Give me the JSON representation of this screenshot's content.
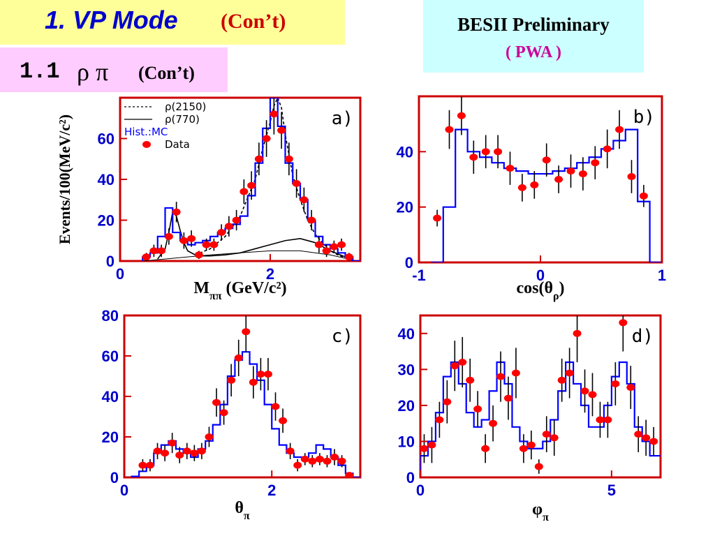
{
  "header": {
    "title_main": "1. VP Mode",
    "title_suffix": "(Con’t)",
    "subtitle_number": "1.1",
    "subtitle_greek": "ρ π",
    "subtitle_suffix": "(Con’t)",
    "badge_line1": "BESII Preliminary",
    "badge_line2": "( PWA )"
  },
  "colors": {
    "title_bg": "#ffff99",
    "title_text": "#0000cc",
    "title_suffix": "#cc0000",
    "subtitle_bg": "#ffccff",
    "badge_bg": "#ccffff",
    "badge_line2": "#cc0099",
    "axis": "#cc0000",
    "tick_label": "#0000cc",
    "mc_hist": "#0000ff",
    "data_point": "#ff0000",
    "error_bar": "#000000"
  },
  "chart_data": [
    {
      "id": "a",
      "type": "line",
      "panel_label": "a)",
      "xlabel": "M",
      "xlabel_sub": "ππ",
      "xlabel_unit": " (GeV/c²)",
      "ylabel": "Events/100(MeV/c²)",
      "xlim": [
        0,
        3.2
      ],
      "ylim": [
        0,
        80
      ],
      "xticks": [
        {
          "v": 0,
          "t": "0"
        },
        {
          "v": 2,
          "t": "2"
        }
      ],
      "yticks": [
        {
          "v": 0,
          "t": "0"
        },
        {
          "v": 20,
          "t": "20"
        },
        {
          "v": 40,
          "t": "40"
        },
        {
          "v": 60,
          "t": "60"
        }
      ],
      "legend": [
        {
          "style": "dashed",
          "label": "ρ(2150)"
        },
        {
          "style": "solid",
          "label": "ρ(770)"
        },
        {
          "style": "hist",
          "label": "Hist.:MC"
        },
        {
          "style": "dot",
          "label": "Data"
        }
      ],
      "series": [
        {
          "name": "ρ(2150)",
          "kind": "dashed",
          "x": [
            1.0,
            1.2,
            1.4,
            1.6,
            1.8,
            1.9,
            2.0,
            2.05,
            2.1,
            2.15,
            2.2,
            2.3,
            2.4,
            2.5,
            2.6,
            2.7,
            2.8,
            2.9,
            3.0,
            3.1
          ],
          "y": [
            3,
            6,
            12,
            22,
            40,
            55,
            68,
            76,
            80,
            75,
            62,
            42,
            30,
            20,
            13,
            9,
            5,
            3,
            1.5,
            0.5
          ]
        },
        {
          "name": "ρ(770)",
          "kind": "solid",
          "x": [
            0.5,
            0.6,
            0.65,
            0.7,
            0.75,
            0.8,
            0.85,
            0.9,
            1.0,
            1.1,
            1.2,
            1.4,
            1.6,
            1.8,
            2.0,
            2.2,
            2.4,
            2.6,
            2.8,
            3.0,
            3.1
          ],
          "y": [
            1,
            6,
            14,
            24,
            22,
            15,
            9,
            5,
            3,
            2.5,
            2.5,
            3,
            4,
            6,
            8,
            10,
            11,
            9,
            5,
            2,
            1
          ]
        },
        {
          "name": "bg",
          "kind": "solid-thin",
          "x": [
            0.3,
            0.6,
            0.9,
            1.2,
            1.6,
            2.0,
            2.4,
            2.8,
            3.1
          ],
          "y": [
            0,
            1,
            2,
            3,
            4,
            5,
            5,
            3,
            0.5
          ]
        },
        {
          "name": "MC",
          "kind": "hist",
          "x": [
            0.3,
            0.4,
            0.5,
            0.6,
            0.7,
            0.8,
            0.9,
            1.0,
            1.1,
            1.2,
            1.3,
            1.4,
            1.5,
            1.6,
            1.7,
            1.8,
            1.9,
            2.0,
            2.1,
            2.2,
            2.3,
            2.4,
            2.5,
            2.6,
            2.7,
            2.8,
            2.9,
            3.0,
            3.1
          ],
          "y": [
            2,
            4,
            12,
            26,
            14,
            10,
            8,
            9,
            10,
            12,
            14,
            16,
            18,
            22,
            32,
            48,
            65,
            80,
            66,
            48,
            38,
            30,
            20,
            12,
            8,
            6,
            4,
            2,
            0
          ]
        },
        {
          "name": "Data",
          "kind": "points",
          "x": [
            0.35,
            0.45,
            0.55,
            0.65,
            0.75,
            0.85,
            0.95,
            1.05,
            1.15,
            1.25,
            1.35,
            1.45,
            1.55,
            1.65,
            1.75,
            1.85,
            1.95,
            2.05,
            2.15,
            2.25,
            2.35,
            2.45,
            2.55,
            2.65,
            2.75,
            2.85,
            2.95,
            3.05
          ],
          "y": [
            2,
            5,
            5,
            12,
            24,
            10,
            11,
            3,
            8,
            8,
            14,
            17,
            20,
            34,
            37,
            50,
            60,
            72,
            64,
            50,
            38,
            30,
            20,
            8,
            5,
            7,
            8,
            2
          ],
          "err": [
            2,
            3,
            3,
            4,
            5,
            4,
            4,
            2,
            3,
            3,
            4,
            5,
            5,
            6,
            7,
            8,
            9,
            10,
            9,
            8,
            7,
            6,
            5,
            4,
            3,
            3,
            3,
            2
          ]
        }
      ]
    },
    {
      "id": "b",
      "type": "line",
      "panel_label": "b)",
      "xlabel": "cos(θ",
      "xlabel_sub": "ρ",
      "xlabel_unit": ")",
      "ylabel": "",
      "xlim": [
        -1,
        1
      ],
      "ylim": [
        0,
        60
      ],
      "xticks": [
        {
          "v": -1,
          "t": "-1"
        },
        {
          "v": 0,
          "t": "0"
        },
        {
          "v": 1,
          "t": "1"
        }
      ],
      "yticks": [
        {
          "v": 0,
          "t": "0"
        },
        {
          "v": 20,
          "t": "20"
        },
        {
          "v": 40,
          "t": "40"
        }
      ],
      "series": [
        {
          "name": "MC",
          "kind": "hist",
          "x": [
            -0.9,
            -0.8,
            -0.7,
            -0.6,
            -0.5,
            -0.4,
            -0.3,
            -0.2,
            -0.1,
            0.0,
            0.1,
            0.2,
            0.3,
            0.4,
            0.5,
            0.6,
            0.7,
            0.8,
            0.9
          ],
          "y": [
            0,
            20,
            48,
            40,
            38,
            36,
            34,
            33,
            32,
            32,
            33,
            34,
            36,
            38,
            41,
            44,
            48,
            22,
            0
          ]
        },
        {
          "name": "Data",
          "kind": "points",
          "x": [
            -0.85,
            -0.75,
            -0.65,
            -0.55,
            -0.45,
            -0.35,
            -0.25,
            -0.15,
            -0.05,
            0.05,
            0.15,
            0.25,
            0.35,
            0.45,
            0.55,
            0.65,
            0.75,
            0.85
          ],
          "y": [
            16,
            48,
            53,
            38,
            40,
            40,
            34,
            27,
            28,
            37,
            30,
            33,
            32,
            36,
            41,
            48,
            31,
            24
          ],
          "err": [
            3,
            7,
            7,
            6,
            6,
            6,
            6,
            5,
            5,
            6,
            5,
            6,
            6,
            6,
            7,
            7,
            6,
            4
          ]
        }
      ]
    },
    {
      "id": "c",
      "type": "line",
      "panel_label": "c)",
      "xlabel": "θ",
      "xlabel_sub": "π",
      "xlabel_unit": "",
      "ylabel": "",
      "xlim": [
        0,
        3.2
      ],
      "ylim": [
        0,
        80
      ],
      "xticks": [
        {
          "v": 0,
          "t": "0"
        },
        {
          "v": 2,
          "t": "2"
        }
      ],
      "yticks": [
        {
          "v": 0,
          "t": "0"
        },
        {
          "v": 20,
          "t": "20"
        },
        {
          "v": 40,
          "t": "40"
        },
        {
          "v": 60,
          "t": "60"
        },
        {
          "v": 80,
          "t": "80"
        }
      ],
      "series": [
        {
          "name": "MC",
          "kind": "hist",
          "x": [
            0.0,
            0.1,
            0.2,
            0.3,
            0.4,
            0.5,
            0.6,
            0.7,
            0.8,
            0.9,
            1.0,
            1.1,
            1.2,
            1.3,
            1.4,
            1.5,
            1.6,
            1.7,
            1.8,
            1.9,
            2.0,
            2.1,
            2.2,
            2.3,
            2.4,
            2.5,
            2.6,
            2.7,
            2.8,
            2.9,
            3.0,
            3.1
          ],
          "y": [
            0,
            0.5,
            3,
            6,
            12,
            16,
            18,
            14,
            12,
            10,
            14,
            18,
            26,
            36,
            50,
            58,
            62,
            56,
            48,
            36,
            24,
            16,
            12,
            10,
            10,
            12,
            16,
            14,
            10,
            6,
            2,
            0
          ]
        },
        {
          "name": "Data",
          "kind": "points",
          "x": [
            0.25,
            0.35,
            0.45,
            0.55,
            0.65,
            0.75,
            0.85,
            0.95,
            1.05,
            1.15,
            1.25,
            1.35,
            1.45,
            1.55,
            1.65,
            1.75,
            1.85,
            1.95,
            2.05,
            2.15,
            2.25,
            2.35,
            2.45,
            2.55,
            2.65,
            2.75,
            2.85,
            2.95,
            3.05
          ],
          "y": [
            6,
            6,
            13,
            12,
            17,
            11,
            13,
            12,
            13,
            20,
            37,
            32,
            48,
            59,
            72,
            47,
            51,
            51,
            35,
            28,
            13,
            6,
            9,
            8,
            9,
            8,
            10,
            8,
            1
          ],
          "err": [
            3,
            3,
            4,
            4,
            5,
            4,
            4,
            4,
            4,
            5,
            7,
            6,
            8,
            9,
            10,
            8,
            8,
            8,
            7,
            6,
            4,
            3,
            3,
            3,
            3,
            3,
            4,
            3,
            1
          ]
        }
      ]
    },
    {
      "id": "d",
      "type": "line",
      "panel_label": "d)",
      "xlabel": "φ",
      "xlabel_sub": "π",
      "xlabel_unit": "",
      "ylabel": "",
      "xlim": [
        0,
        6.28
      ],
      "ylim": [
        0,
        45
      ],
      "xticks": [
        {
          "v": 0,
          "t": "0"
        },
        {
          "v": 5,
          "t": "5"
        }
      ],
      "yticks": [
        {
          "v": 0,
          "t": "0"
        },
        {
          "v": 10,
          "t": "10"
        },
        {
          "v": 20,
          "t": "20"
        },
        {
          "v": 30,
          "t": "30"
        },
        {
          "v": 40,
          "t": "40"
        }
      ],
      "series": [
        {
          "name": "MC",
          "kind": "hist",
          "x": [
            0.0,
            0.2,
            0.4,
            0.6,
            0.8,
            1.0,
            1.2,
            1.4,
            1.6,
            1.8,
            2.0,
            2.2,
            2.4,
            2.6,
            2.8,
            3.0,
            3.2,
            3.4,
            3.6,
            3.8,
            4.0,
            4.2,
            4.4,
            4.6,
            4.8,
            5.0,
            5.2,
            5.4,
            5.6,
            5.8,
            6.0,
            6.2
          ],
          "y": [
            6,
            10,
            18,
            28,
            32,
            26,
            18,
            14,
            16,
            24,
            32,
            26,
            14,
            10,
            8,
            8,
            10,
            16,
            24,
            32,
            26,
            20,
            14,
            14,
            20,
            28,
            32,
            26,
            14,
            10,
            6,
            6
          ]
        },
        {
          "name": "Data",
          "kind": "points",
          "x": [
            0.1,
            0.3,
            0.5,
            0.7,
            0.9,
            1.1,
            1.3,
            1.5,
            1.7,
            1.9,
            2.1,
            2.3,
            2.5,
            2.7,
            2.9,
            3.1,
            3.3,
            3.5,
            3.7,
            3.9,
            4.1,
            4.3,
            4.5,
            4.7,
            4.9,
            5.1,
            5.3,
            5.5,
            5.7,
            5.9,
            6.1
          ],
          "y": [
            8,
            9,
            16,
            21,
            31,
            32,
            27,
            19,
            8,
            15,
            28,
            22,
            29,
            8,
            9,
            3,
            12,
            11,
            27,
            29,
            40,
            24,
            23,
            16,
            16,
            26,
            43,
            25,
            12,
            11,
            10
          ],
          "err": [
            4,
            5,
            5,
            6,
            7,
            7,
            6,
            5,
            4,
            5,
            7,
            6,
            7,
            4,
            4,
            2,
            5,
            5,
            6,
            7,
            8,
            6,
            6,
            5,
            5,
            6,
            8,
            6,
            5,
            5,
            4
          ]
        }
      ]
    }
  ]
}
